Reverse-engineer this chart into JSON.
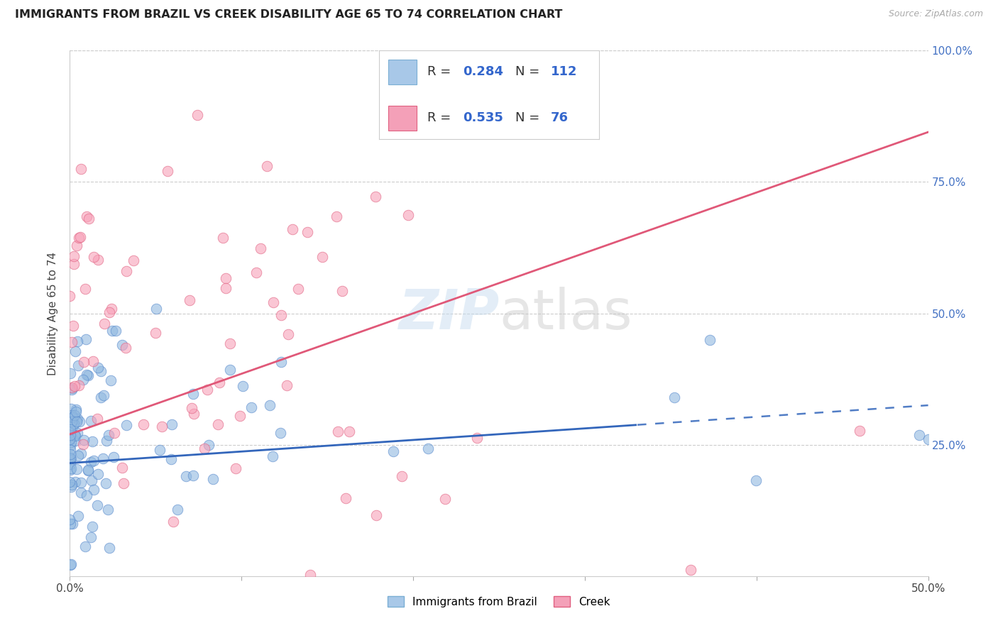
{
  "title": "IMMIGRANTS FROM BRAZIL VS CREEK DISABILITY AGE 65 TO 74 CORRELATION CHART",
  "source": "Source: ZipAtlas.com",
  "ylabel": "Disability Age 65 to 74",
  "x_min": 0.0,
  "x_max": 0.5,
  "y_min": 0.0,
  "y_max": 1.0,
  "x_tick_positions": [
    0.0,
    0.1,
    0.2,
    0.3,
    0.4,
    0.5
  ],
  "x_tick_labels": [
    "0.0%",
    "",
    "",
    "",
    "",
    "50.0%"
  ],
  "y_tick_positions": [
    0.25,
    0.5,
    0.75,
    1.0
  ],
  "y_tick_labels": [
    "25.0%",
    "50.0%",
    "75.0%",
    "100.0%"
  ],
  "brazil_color": "#90b8e0",
  "brazil_edge_color": "#5588cc",
  "brazil_line_color": "#3366bb",
  "creek_color": "#f8a0b8",
  "creek_edge_color": "#e06080",
  "creek_line_color": "#e05878",
  "brazil_R": 0.284,
  "brazil_N": 112,
  "creek_R": 0.535,
  "creek_N": 76,
  "brazil_line_intercept": 0.215,
  "brazil_line_slope": 0.22,
  "creek_line_intercept": 0.27,
  "creek_line_slope": 1.15,
  "watermark_text": "ZIPatlas",
  "watermark_color": "#c8ddf0",
  "legend_R_color": "#3366cc",
  "legend_N_color": "#3366cc",
  "legend_text_color": "#333333"
}
